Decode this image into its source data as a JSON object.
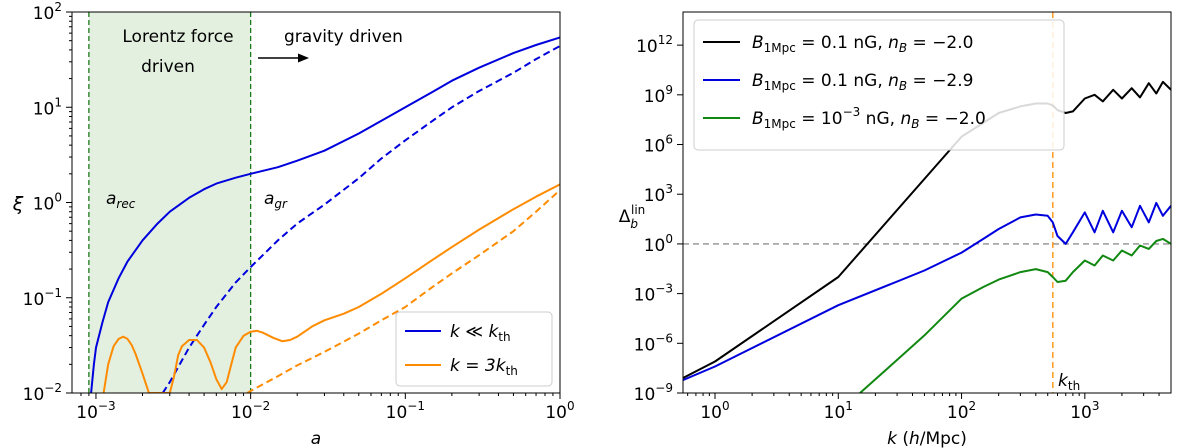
{
  "chart_data": [
    {
      "type": "line",
      "xscale": "log",
      "yscale": "log",
      "xlim": [
        0.0007,
        1.0
      ],
      "ylim": [
        0.01,
        100
      ],
      "xlabel": "a",
      "ylabel": "ξ",
      "xticks": [
        0.001,
        0.01,
        0.1,
        1
      ],
      "yticks": [
        0.01,
        0.1,
        1,
        10,
        100
      ],
      "shaded_region": {
        "x": [
          0.0009,
          0.01
        ],
        "color": "#e3f0e0"
      },
      "vlines": [
        {
          "x": 0.0009,
          "color": "#1a7a1a",
          "style": "dashed",
          "label_parts": [
            "a",
            "rec"
          ]
        },
        {
          "x": 0.01,
          "color": "#1a7a1a",
          "style": "dashed",
          "label_parts": [
            "a",
            "gr"
          ]
        }
      ],
      "annotations": [
        {
          "text": "Lorentz force",
          "x": 0.0016,
          "y": 40
        },
        {
          "text": "driven",
          "x": 0.0016,
          "y": 20
        },
        {
          "text": "gravity driven",
          "x": 0.04,
          "y": 50
        }
      ],
      "arrow": {
        "from": [
          0.01,
          15
        ],
        "to": [
          0.03,
          15
        ]
      },
      "legend": {
        "position": "lower-right",
        "labels": [
          [
            "k ≪ k",
            "th"
          ],
          [
            "k = 3k",
            "th"
          ]
        ]
      },
      "series": [
        {
          "color": "#0000dd",
          "style": "solid",
          "x": [
            0.00093,
            0.00097,
            0.001,
            0.0011,
            0.0012,
            0.0014,
            0.0016,
            0.002,
            0.0025,
            0.003,
            0.004,
            0.005,
            0.006,
            0.008,
            0.01,
            0.015,
            0.02,
            0.03,
            0.05,
            0.07,
            0.1,
            0.15,
            0.2,
            0.3,
            0.5,
            0.7,
            1.0
          ],
          "y": [
            0.01,
            0.02,
            0.03,
            0.055,
            0.09,
            0.16,
            0.24,
            0.4,
            0.6,
            0.8,
            1.12,
            1.38,
            1.58,
            1.82,
            2.0,
            2.35,
            2.75,
            3.5,
            5.3,
            7.2,
            10.0,
            14.5,
            19.0,
            26.0,
            37.0,
            45.0,
            54.0
          ]
        },
        {
          "color": "#0000dd",
          "style": "dashed",
          "x": [
            0.0027,
            0.003,
            0.004,
            0.005,
            0.006,
            0.008,
            0.01,
            0.015,
            0.02,
            0.03,
            0.05,
            0.07,
            0.1,
            0.15,
            0.2,
            0.3,
            0.5,
            0.7,
            1.0
          ],
          "y": [
            0.01,
            0.013,
            0.03,
            0.052,
            0.08,
            0.145,
            0.21,
            0.4,
            0.6,
            0.95,
            1.8,
            2.9,
            4.5,
            7.2,
            10.0,
            14.8,
            23.0,
            32.0,
            44.0
          ]
        },
        {
          "color": "#ff8c00",
          "style": "solid",
          "x": [
            0.00112,
            0.0012,
            0.0013,
            0.0014,
            0.0015,
            0.0016,
            0.0017,
            0.0018,
            0.002,
            0.0022,
            0.0024,
            0.0026,
            0.0028,
            0.003,
            0.0032,
            0.0034,
            0.0036,
            0.004,
            0.0045,
            0.005,
            0.0055,
            0.006,
            0.0065,
            0.007,
            0.0075,
            0.008,
            0.009,
            0.01,
            0.011,
            0.012,
            0.014,
            0.016,
            0.018,
            0.02,
            0.025,
            0.03,
            0.04,
            0.05,
            0.07,
            0.1,
            0.15,
            0.2,
            0.3,
            0.5,
            0.7,
            1.0
          ],
          "y": [
            0.01,
            0.02,
            0.031,
            0.037,
            0.039,
            0.037,
            0.032,
            0.026,
            0.016,
            0.01,
            0.01,
            0.01,
            0.01,
            0.01,
            0.015,
            0.025,
            0.031,
            0.036,
            0.036,
            0.03,
            0.021,
            0.014,
            0.011,
            0.013,
            0.02,
            0.03,
            0.04,
            0.044,
            0.045,
            0.043,
            0.038,
            0.035,
            0.036,
            0.039,
            0.05,
            0.058,
            0.068,
            0.08,
            0.11,
            0.16,
            0.25,
            0.34,
            0.52,
            0.85,
            1.15,
            1.55
          ]
        },
        {
          "color": "#ff8c00",
          "style": "dashed",
          "x": [
            0.0095,
            0.01,
            0.015,
            0.02,
            0.03,
            0.05,
            0.07,
            0.1,
            0.15,
            0.2,
            0.3,
            0.5,
            0.7,
            1.0
          ],
          "y": [
            0.01,
            0.0105,
            0.015,
            0.0195,
            0.027,
            0.042,
            0.058,
            0.08,
            0.13,
            0.18,
            0.28,
            0.5,
            0.8,
            1.35
          ]
        }
      ]
    },
    {
      "type": "line",
      "xscale": "log",
      "yscale": "log",
      "xlim": [
        0.55,
        5000
      ],
      "ylim": [
        1e-09,
        100000000000000.0
      ],
      "xlabel": "k (h/Mpc)",
      "ylabel": "Δ_b^lin",
      "xticks": [
        1,
        10,
        100,
        1000
      ],
      "yticks": [
        1e-09,
        1e-06,
        0.001,
        1,
        1000,
        1000000.0,
        1000000000.0,
        1000000000000.0
      ],
      "hline": {
        "y": 1,
        "color": "#777777",
        "style": "dashed"
      },
      "vline": {
        "x": 550,
        "color": "#ff8c00",
        "style": "dashed",
        "label_parts": [
          "k",
          "th"
        ]
      },
      "legend": {
        "position": "top-left"
      },
      "series": [
        {
          "name_parts": [
            "B",
            "1Mpc",
            " = 0.1 nG, ",
            "n",
            "B",
            " = −2.0"
          ],
          "color": "#000000",
          "x": [
            0.55,
            1,
            10,
            100,
            200,
            300,
            400,
            500,
            550,
            600,
            700,
            800,
            1000,
            1200,
            1400,
            1700,
            2000,
            2400,
            2800,
            3300,
            3800,
            4300,
            5000
          ],
          "y": [
            8e-09,
            8e-08,
            0.01,
            3000000,
            80000000.0,
            200000000.0,
            300000000.0,
            300000000.0,
            230000000.0,
            120000000.0,
            80000000.0,
            100000000.0,
            600000000.0,
            1000000000.0,
            400000000.0,
            2000000000.0,
            600000000.0,
            2500000000.0,
            700000000.0,
            5000000000.0,
            1200000000.0,
            6000000000.0,
            2000000000.0
          ]
        },
        {
          "name_parts": [
            "B",
            "1Mpc",
            " = 0.1 nG, ",
            "n",
            "B",
            " = −2.9"
          ],
          "color": "#0000dd",
          "x": [
            0.55,
            1,
            10,
            50,
            100,
            150,
            200,
            300,
            400,
            500,
            550,
            600,
            700,
            800,
            1000,
            1200,
            1400,
            1700,
            2000,
            2400,
            2800,
            3300,
            3800,
            4300,
            5000
          ],
          "y": [
            6e-09,
            4e-08,
            0.0002,
            0.025,
            0.3,
            2,
            8,
            40,
            60,
            50,
            20,
            3,
            1,
            5,
            80,
            5,
            100,
            5,
            100,
            10,
            200,
            20,
            300,
            50,
            200
          ]
        },
        {
          "name_parts": [
            "B",
            "1Mpc",
            " = 10",
            "−3",
            " nG, ",
            "n",
            "B",
            " = −2.0"
          ],
          "color": "#118811",
          "x": [
            15,
            30,
            50,
            100,
            150,
            200,
            300,
            400,
            500,
            550,
            600,
            700,
            800,
            1000,
            1200,
            1400,
            1700,
            2000,
            2400,
            2800,
            3300,
            3800,
            4300,
            5000
          ],
          "y": [
            1e-09,
            1e-07,
            3e-06,
            0.0005,
            0.0025,
            0.007,
            0.02,
            0.03,
            0.02,
            0.01,
            0.005,
            0.006,
            0.02,
            0.1,
            0.05,
            0.2,
            0.1,
            0.4,
            0.2,
            0.8,
            0.5,
            1.5,
            2,
            1
          ]
        }
      ]
    }
  ]
}
